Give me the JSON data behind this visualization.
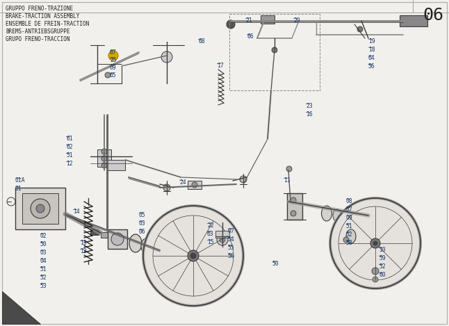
{
  "title_lines": [
    "GRUPPO FRENO-TRAZIONE",
    "BRAKE-TRACTION ASSEMBLY",
    "ENSEMBLE DE FREIN-TRACTION",
    "BREMS-ANTRIEBSGRUPPE",
    "GRUPO FRENO-TRACCION"
  ],
  "page_number": "06",
  "bg_color": "#f2f0ec",
  "line_color": "#3a3a3a",
  "text_color": "#222222",
  "label_color": "#1a3a6a",
  "title_fontsize": 5.5,
  "label_fontsize": 5.8,
  "page_fontsize": 18,
  "border_color": "#aaaaaa"
}
